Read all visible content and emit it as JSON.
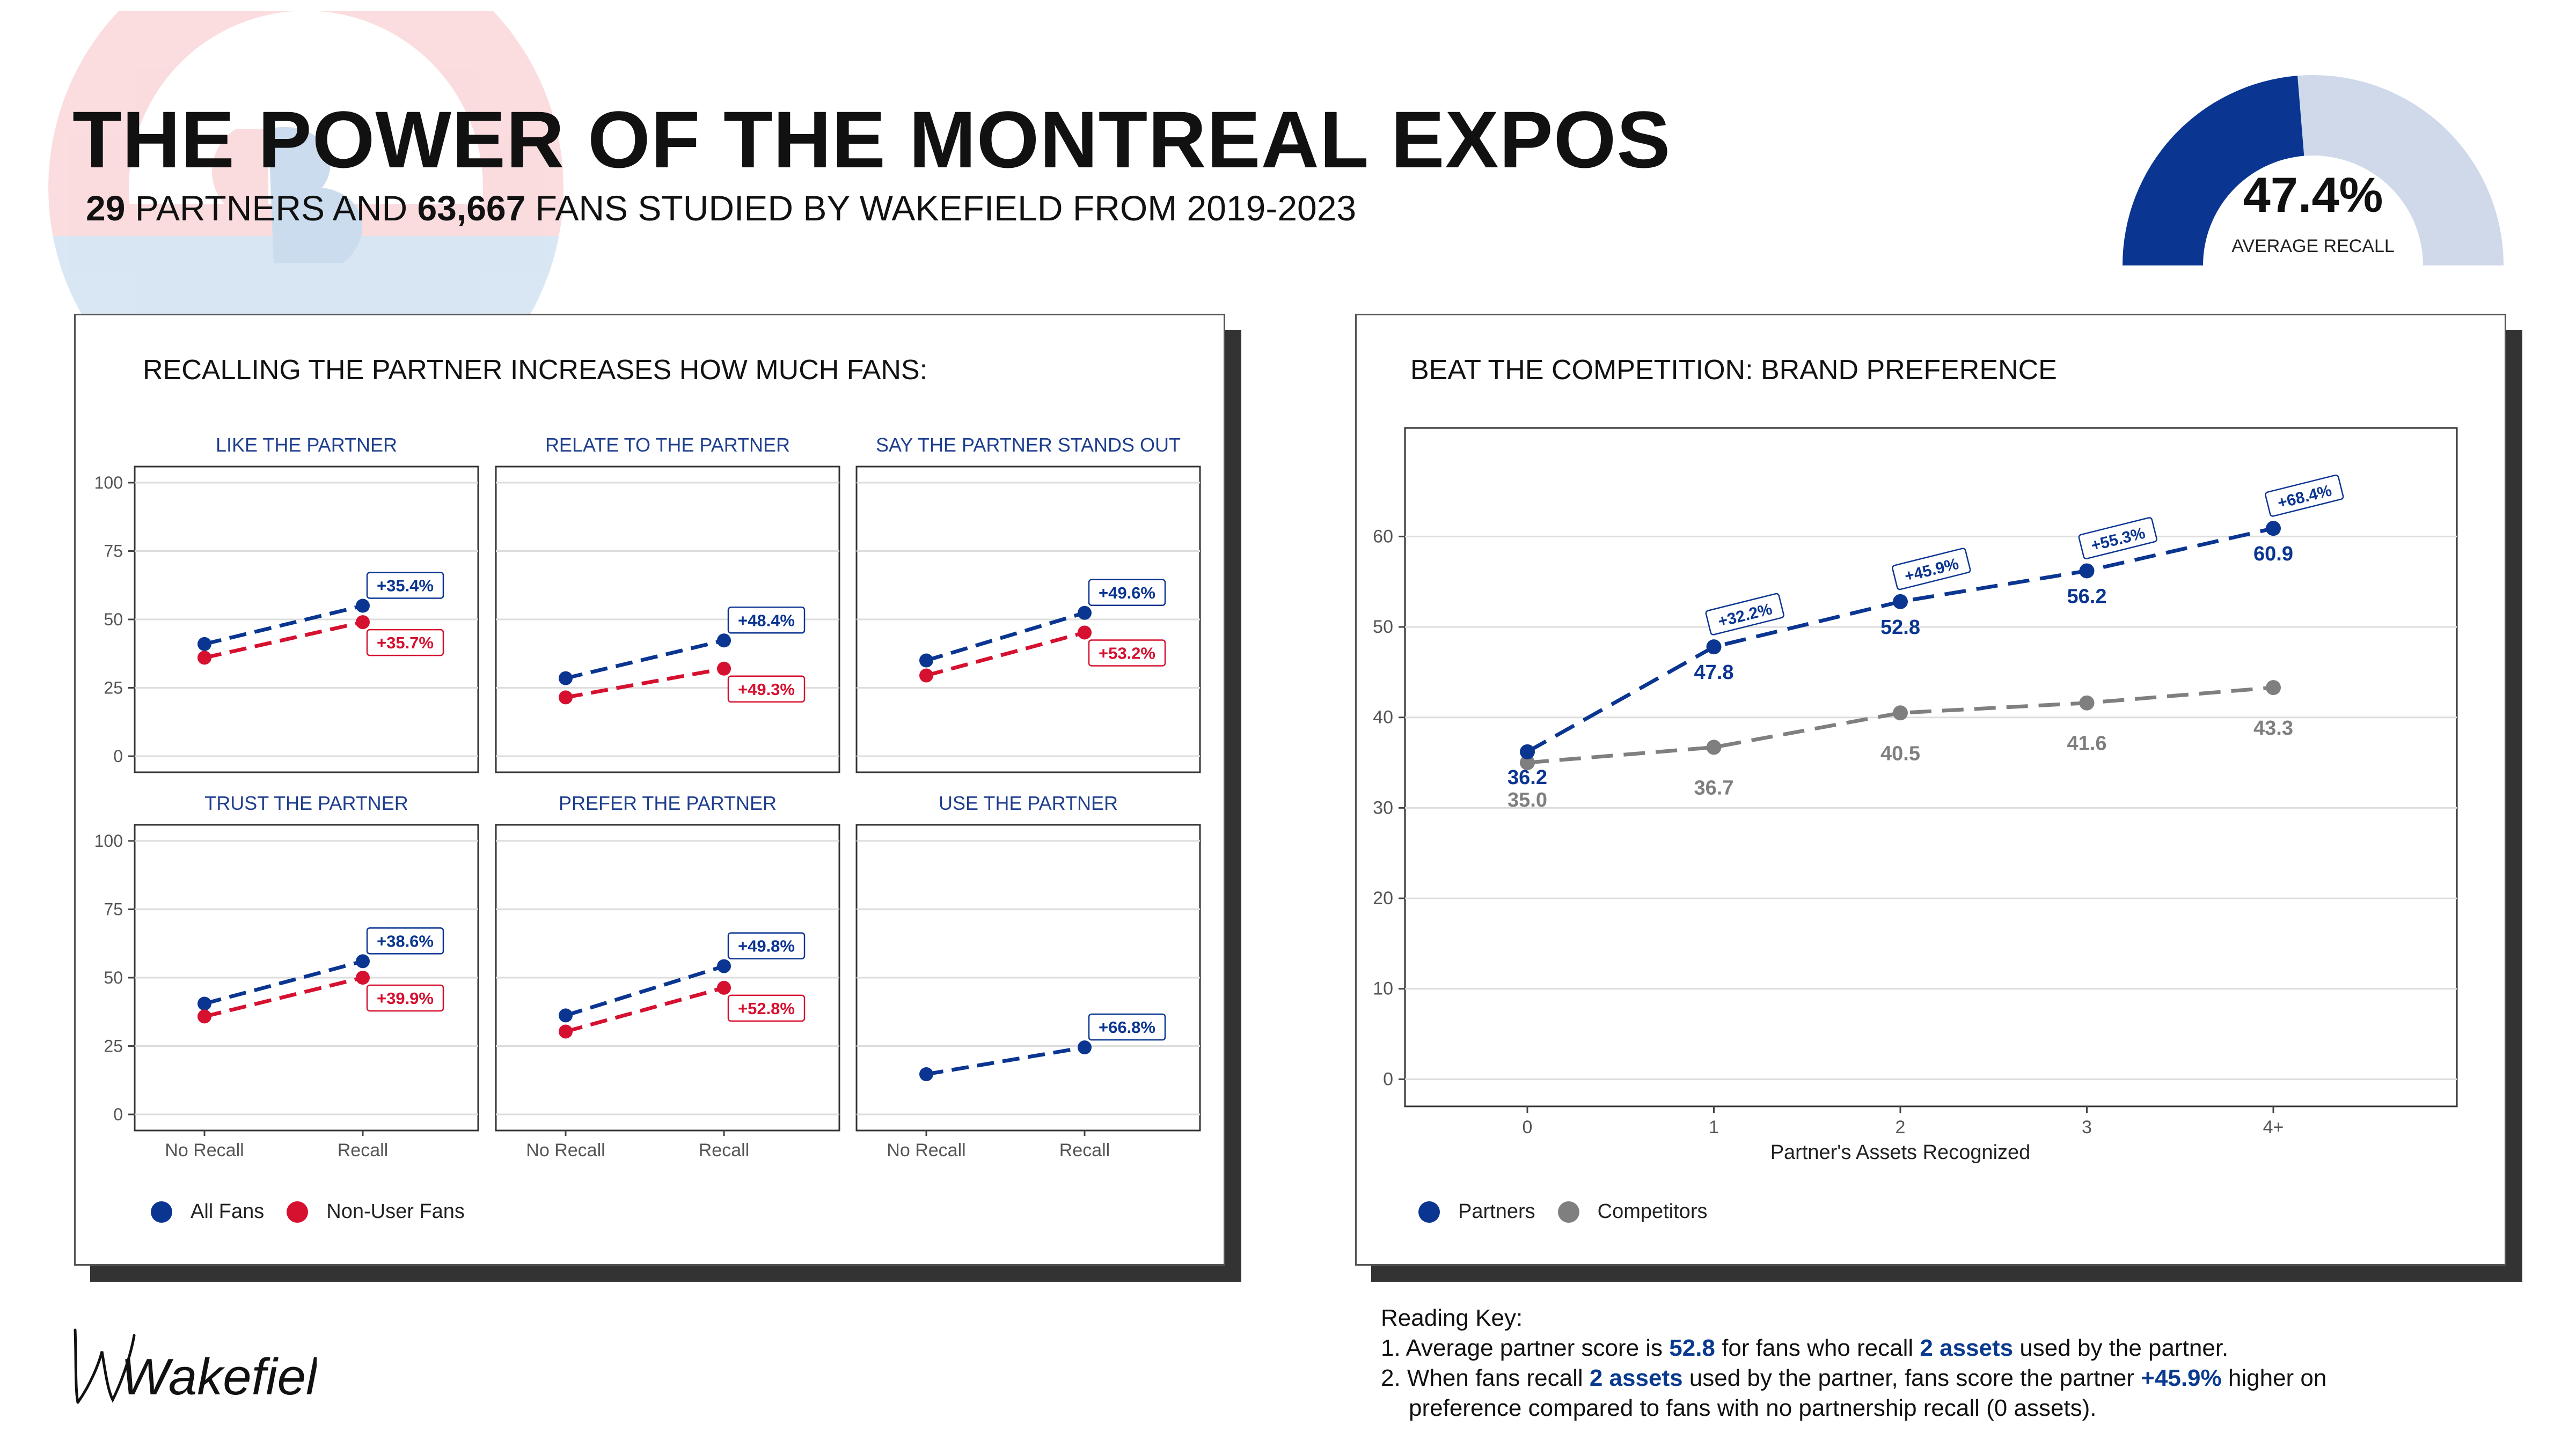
{
  "header": {
    "title": "THE POWER OF THE MONTREAL EXPOS",
    "subtitle_num1": "29",
    "subtitle_mid": " PARTNERS AND ",
    "subtitle_num2": "63,667",
    "subtitle_end": " FANS STUDIED BY WAKEFIELD FROM 2019-2023"
  },
  "gauge": {
    "value": 47.4,
    "value_label": "47.4%",
    "caption": "AVERAGE RECALL",
    "color_fill": "#0a3591",
    "color_track": "#cfd9ea"
  },
  "colors": {
    "all_fans": "#0a3591",
    "non_user": "#d6102f",
    "competitors": "#7f7f7f",
    "partners": "#0a3591"
  },
  "left_panel": {
    "title": "RECALLING THE PARTNER INCREASES HOW MUCH FANS:",
    "legend": [
      {
        "label": "All Fans",
        "color": "#0a3591"
      },
      {
        "label": "Non-User Fans",
        "color": "#d6102f"
      }
    ]
  },
  "right_panel": {
    "title": "BEAT THE COMPETITION: BRAND PREFERENCE",
    "legend": [
      {
        "label": "Partners",
        "color": "#0a3591"
      },
      {
        "label": "Competitors",
        "color": "#7f7f7f"
      }
    ]
  },
  "chart_data": [
    {
      "type": "line",
      "facets": [
        {
          "title": "LIKE THE PARTNER",
          "x": [
            "No Recall",
            "Recall"
          ],
          "series": [
            {
              "name": "All Fans",
              "values": [
                41,
                55
              ],
              "label": "+35.4%"
            },
            {
              "name": "Non-User Fans",
              "values": [
                36,
                49
              ],
              "label": "+35.7%"
            }
          ]
        },
        {
          "title": "RELATE TO THE PARTNER",
          "x": [
            "No Recall",
            "Recall"
          ],
          "series": [
            {
              "name": "All Fans",
              "values": [
                28.5,
                42.3
              ],
              "label": "+48.4%"
            },
            {
              "name": "Non-User Fans",
              "values": [
                21.5,
                32
              ],
              "label": "+49.3%"
            }
          ]
        },
        {
          "title": "SAY THE PARTNER STANDS OUT",
          "x": [
            "No Recall",
            "Recall"
          ],
          "series": [
            {
              "name": "All Fans",
              "values": [
                35,
                52.4
              ],
              "label": "+49.6%"
            },
            {
              "name": "Non-User Fans",
              "values": [
                29.5,
                45.2
              ],
              "label": "+53.2%"
            }
          ]
        },
        {
          "title": "TRUST THE PARTNER",
          "x": [
            "No Recall",
            "Recall"
          ],
          "series": [
            {
              "name": "All Fans",
              "values": [
                40.5,
                56
              ],
              "label": "+38.6%"
            },
            {
              "name": "Non-User Fans",
              "values": [
                35.8,
                50
              ],
              "label": "+39.9%"
            }
          ]
        },
        {
          "title": "PREFER THE PARTNER",
          "x": [
            "No Recall",
            "Recall"
          ],
          "series": [
            {
              "name": "All Fans",
              "values": [
                36.2,
                54.2
              ],
              "label": "+49.8%"
            },
            {
              "name": "Non-User Fans",
              "values": [
                30.3,
                46.3
              ],
              "label": "+52.8%"
            }
          ]
        },
        {
          "title": "USE THE PARTNER",
          "x": [
            "No Recall",
            "Recall"
          ],
          "series": [
            {
              "name": "All Fans",
              "values": [
                14.7,
                24.5
              ],
              "label": "+66.8%"
            }
          ]
        }
      ],
      "ylim": [
        0,
        100
      ],
      "yticks": [
        0,
        25,
        50,
        75,
        100
      ],
      "grid": true,
      "legend_position": "bottom-left"
    },
    {
      "type": "line",
      "categories": [
        "0",
        "1",
        "2",
        "3",
        "4+"
      ],
      "xlabel": "Partner's Assets Recognized",
      "ylabel": "",
      "ylim": [
        -3,
        72
      ],
      "yticks": [
        0,
        10,
        20,
        30,
        40,
        50,
        60
      ],
      "grid": true,
      "legend_position": "bottom-left",
      "series": [
        {
          "name": "Partners",
          "values": [
            36.2,
            47.8,
            52.8,
            56.2,
            60.9
          ],
          "labels": [
            "36.2",
            "47.8",
            "52.8",
            "56.2",
            "60.9"
          ],
          "lifts": [
            "",
            "+32.2%",
            "+45.9%",
            "+55.3%",
            "+68.4%"
          ]
        },
        {
          "name": "Competitors",
          "values": [
            35.0,
            36.7,
            40.5,
            41.6,
            43.3
          ],
          "labels": [
            "35.0",
            "36.7",
            "40.5",
            "41.6",
            "43.3"
          ]
        }
      ]
    }
  ],
  "reading_key": {
    "heading": "Reading Key:",
    "l1_a": "1. Average partner score is ",
    "l1_b": "52.8",
    "l1_c": " for fans who recall ",
    "l1_d": "2 assets",
    "l1_e": " used by the partner.",
    "l2_a": "2. When fans recall ",
    "l2_b": "2 assets",
    "l2_c": " used by the partner, fans score the partner ",
    "l2_d": "+45.9%",
    "l2_e": " higher on",
    "l3": "preference compared to fans with no partnership recall (0 assets)."
  },
  "logo": {
    "text": "Wakefield"
  }
}
